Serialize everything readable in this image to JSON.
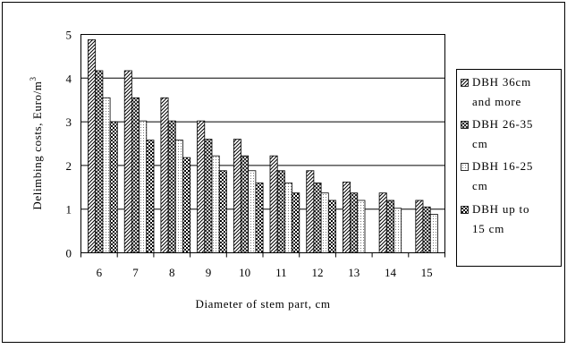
{
  "chart_data": {
    "type": "bar",
    "title": "",
    "xlabel": "Diameter of stem part, cm",
    "ylabel_main": "Delimbing costs, Euro/m",
    "ylabel_sup": "3",
    "categories": [
      "6",
      "7",
      "8",
      "9",
      "10",
      "11",
      "12",
      "13",
      "14",
      "15"
    ],
    "ylim": [
      0,
      5
    ],
    "yticks": [
      "0",
      "1",
      "2",
      "3",
      "4",
      "5"
    ],
    "grid": true,
    "legend_position": "right",
    "series": [
      {
        "name": "DBH 36cm and more",
        "legend_lines": [
          "DBH 36cm",
          "and more"
        ],
        "pattern": "diag",
        "values": [
          4.88,
          4.17,
          3.55,
          3.02,
          2.6,
          2.22,
          1.88,
          1.62,
          1.37,
          1.2
        ]
      },
      {
        "name": "DBH 26-35 cm",
        "legend_lines": [
          "DBH 26-35",
          "cm"
        ],
        "pattern": "cross",
        "values": [
          4.17,
          3.55,
          3.02,
          2.6,
          2.22,
          1.88,
          1.6,
          1.37,
          1.2,
          1.05
        ]
      },
      {
        "name": "DBH 16-25 cm",
        "legend_lines": [
          "DBH 16-25",
          "cm"
        ],
        "pattern": "dots",
        "values": [
          3.55,
          3.02,
          2.58,
          2.22,
          1.88,
          1.6,
          1.37,
          1.2,
          1.02,
          0.88
        ]
      },
      {
        "name": "DBH up to 15 cm",
        "legend_lines": [
          "DBH up to",
          "15 cm"
        ],
        "pattern": "checker",
        "values": [
          3.0,
          2.58,
          2.18,
          1.88,
          1.6,
          1.37,
          1.2,
          null,
          null,
          null
        ]
      }
    ]
  }
}
